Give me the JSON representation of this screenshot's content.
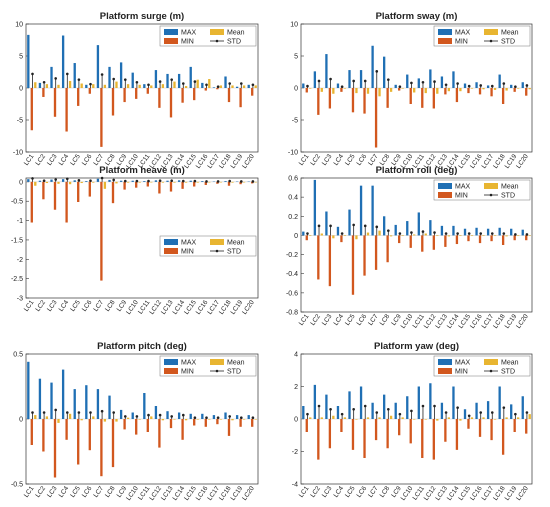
{
  "colors": {
    "max": "#1f6fb4",
    "min": "#d2571e",
    "mean": "#e8b531",
    "std": "#222222"
  },
  "legend": {
    "max": "MAX",
    "min": "MIN",
    "mean": "Mean",
    "std": "STD"
  },
  "categories": [
    "LC1",
    "LC2",
    "LC3",
    "LC4",
    "LC5",
    "LC6",
    "LC7",
    "LC8",
    "LC9",
    "LC10",
    "LC11",
    "LC12",
    "LC13",
    "LC14",
    "LC15",
    "LC16",
    "LC17",
    "LC18",
    "LC19",
    "LC20"
  ],
  "chart_data": [
    {
      "type": "bar",
      "title": "Platform surge (m)",
      "ylim": [
        -10,
        10
      ],
      "yticks": [
        -10,
        -5,
        0,
        5,
        10
      ],
      "legend_position": "top-right",
      "series": [
        {
          "name": "MAX",
          "values": [
            8.3,
            0.8,
            3.3,
            8.2,
            3.9,
            0.5,
            6.7,
            3.3,
            4.0,
            2.4,
            0.6,
            2.8,
            2.2,
            2.2,
            3.3,
            0.8,
            0.1,
            1.8,
            0.2,
            0.5
          ]
        },
        {
          "name": "MIN",
          "values": [
            -6.6,
            -1.4,
            -4.5,
            -6.8,
            -2.8,
            -0.9,
            -9.2,
            -4.3,
            -2.2,
            -1.7,
            -0.9,
            -3.1,
            -4.6,
            -2.3,
            -1.9,
            -0.4,
            -0.2,
            -2.2,
            -3.0,
            -1.2
          ]
        },
        {
          "name": "Mean",
          "values": [
            0.9,
            0.6,
            0.5,
            1.1,
            0.7,
            0.6,
            0.5,
            1.0,
            0.6,
            0.5,
            0.4,
            0.6,
            1.0,
            0.3,
            1.3,
            1.4,
            0.4,
            0.4,
            0.4,
            0.4
          ]
        },
        {
          "name": "STD",
          "values": [
            2.2,
            0.9,
            1.5,
            2.2,
            1.3,
            0.6,
            2.1,
            1.4,
            1.3,
            0.9,
            0.5,
            1.0,
            1.3,
            0.7,
            1.0,
            0.5,
            0.2,
            0.7,
            0.7,
            0.5
          ]
        }
      ]
    },
    {
      "type": "bar",
      "title": "Platform sway (m)",
      "ylim": [
        -10,
        10
      ],
      "yticks": [
        -10,
        -5,
        0,
        5,
        10
      ],
      "legend_position": "top-right",
      "series": [
        {
          "name": "MAX",
          "values": [
            0.7,
            2.6,
            5.3,
            0.7,
            2.8,
            2.8,
            6.6,
            4.9,
            0.5,
            2.1,
            1.5,
            2.9,
            1.8,
            2.6,
            0.7,
            0.9,
            0.4,
            2.1,
            0.5,
            0.9
          ]
        },
        {
          "name": "MIN",
          "values": [
            -0.7,
            -4.2,
            -3.2,
            -0.6,
            -3.8,
            -4.0,
            -9.3,
            -3.1,
            -0.4,
            -2.5,
            -3.1,
            -3.2,
            -1.0,
            -2.2,
            -0.8,
            -1.0,
            -1.3,
            -2.5,
            -0.6,
            -1.2
          ]
        },
        {
          "name": "Mean",
          "values": [
            -0.1,
            -0.6,
            -0.9,
            -0.1,
            -0.8,
            -0.9,
            -1.3,
            -0.6,
            -0.1,
            -0.7,
            -0.8,
            -0.9,
            -0.5,
            -0.5,
            -0.1,
            -0.2,
            -0.3,
            -0.4,
            -0.1,
            -0.2
          ]
        },
        {
          "name": "STD",
          "values": [
            0.3,
            1.1,
            1.4,
            0.2,
            1.1,
            1.1,
            2.6,
            1.3,
            0.2,
            0.8,
            0.9,
            1.0,
            0.5,
            0.7,
            0.3,
            0.4,
            0.3,
            0.7,
            0.2,
            0.4
          ]
        }
      ]
    },
    {
      "type": "bar",
      "title": "Platform heave (m)",
      "ylim": [
        -3,
        0.1
      ],
      "yticks": [
        -3,
        -2.5,
        -2,
        -1.5,
        -1,
        -0.5,
        0
      ],
      "legend_position": "bottom-right",
      "series": [
        {
          "name": "MAX",
          "values": [
            0.07,
            0.03,
            0.06,
            0.07,
            0.04,
            0.02,
            0.08,
            0.05,
            0.03,
            0.03,
            0.02,
            0.04,
            0.03,
            0.04,
            0.03,
            0.02,
            0.01,
            0.02,
            0.01,
            0.01
          ]
        },
        {
          "name": "MIN",
          "values": [
            -1.05,
            -0.45,
            -0.72,
            -1.05,
            -0.52,
            -0.38,
            -2.55,
            -0.55,
            -0.2,
            -0.15,
            -0.12,
            -0.3,
            -0.25,
            -0.18,
            -0.12,
            -0.08,
            -0.05,
            -0.1,
            -0.06,
            -0.04
          ]
        },
        {
          "name": "Mean",
          "values": [
            -0.1,
            -0.03,
            -0.05,
            -0.06,
            -0.03,
            -0.02,
            -0.18,
            -0.04,
            -0.02,
            -0.02,
            -0.01,
            -0.02,
            -0.02,
            -0.02,
            -0.02,
            -0.01,
            -0.01,
            -0.02,
            -0.01,
            -0.01
          ]
        },
        {
          "name": "STD",
          "values": [
            0.09,
            0.03,
            0.06,
            0.08,
            0.04,
            0.03,
            0.3,
            0.05,
            0.02,
            0.02,
            0.02,
            0.03,
            0.03,
            0.02,
            0.02,
            0.01,
            0.01,
            0.02,
            0.01,
            0.01
          ]
        }
      ]
    },
    {
      "type": "bar",
      "title": "Platform roll (deg)",
      "ylim": [
        -0.8,
        0.6
      ],
      "yticks": [
        -0.8,
        -0.6,
        -0.4,
        -0.2,
        0,
        0.2,
        0.4,
        0.6
      ],
      "legend_position": "top-right",
      "series": [
        {
          "name": "MAX",
          "values": [
            0.04,
            0.58,
            0.25,
            0.09,
            0.27,
            0.52,
            0.52,
            0.2,
            0.11,
            0.15,
            0.24,
            0.16,
            0.1,
            0.1,
            0.07,
            0.08,
            0.07,
            0.08,
            0.07,
            0.06
          ]
        },
        {
          "name": "MIN",
          "values": [
            -0.05,
            -0.46,
            -0.53,
            -0.07,
            -0.62,
            -0.42,
            -0.36,
            -0.28,
            -0.08,
            -0.13,
            -0.17,
            -0.15,
            -0.12,
            -0.09,
            -0.06,
            -0.08,
            -0.06,
            -0.1,
            -0.05,
            -0.05
          ]
        },
        {
          "name": "Mean",
          "values": [
            0.0,
            0.02,
            -0.03,
            0.0,
            -0.04,
            0.03,
            0.05,
            -0.01,
            0.0,
            0.01,
            0.02,
            0.0,
            -0.01,
            0.0,
            0.0,
            0.0,
            0.0,
            -0.01,
            0.0,
            0.0
          ]
        },
        {
          "name": "STD",
          "values": [
            0.02,
            0.1,
            0.1,
            0.02,
            0.11,
            0.1,
            0.09,
            0.05,
            0.02,
            0.03,
            0.04,
            0.03,
            0.02,
            0.02,
            0.02,
            0.02,
            0.02,
            0.02,
            0.01,
            0.01
          ]
        }
      ]
    },
    {
      "type": "bar",
      "title": "Platform pitch (deg)",
      "ylim": [
        -0.5,
        0.5
      ],
      "yticks": [
        -0.5,
        0,
        0.5
      ],
      "legend_position": "top-right",
      "series": [
        {
          "name": "MAX",
          "values": [
            0.44,
            0.31,
            0.28,
            0.38,
            0.23,
            0.26,
            0.23,
            0.18,
            0.07,
            0.05,
            0.2,
            0.1,
            0.06,
            0.05,
            0.04,
            0.04,
            0.03,
            0.05,
            0.03,
            0.03
          ]
        },
        {
          "name": "MIN",
          "values": [
            -0.2,
            -0.25,
            -0.45,
            -0.16,
            -0.35,
            -0.24,
            -0.44,
            -0.37,
            -0.08,
            -0.12,
            -0.1,
            -0.22,
            -0.07,
            -0.16,
            -0.05,
            -0.06,
            -0.04,
            -0.13,
            -0.06,
            -0.06
          ]
        },
        {
          "name": "Mean",
          "values": [
            0.03,
            0.02,
            -0.03,
            0.04,
            -0.01,
            0.02,
            -0.02,
            -0.02,
            0.01,
            0.0,
            0.02,
            -0.01,
            0.0,
            -0.01,
            0.0,
            0.0,
            0.0,
            -0.01,
            0.0,
            0.0
          ]
        },
        {
          "name": "STD",
          "values": [
            0.05,
            0.05,
            0.07,
            0.05,
            0.05,
            0.05,
            0.06,
            0.05,
            0.02,
            0.02,
            0.03,
            0.03,
            0.02,
            0.03,
            0.01,
            0.01,
            0.01,
            0.02,
            0.01,
            0.01
          ]
        }
      ]
    },
    {
      "type": "bar",
      "title": "Platform yaw (deg)",
      "ylim": [
        -4,
        4
      ],
      "yticks": [
        -4,
        -2,
        0,
        2,
        4
      ],
      "legend_position": "top-right",
      "series": [
        {
          "name": "MAX",
          "values": [
            0.8,
            2.1,
            1.5,
            0.8,
            1.7,
            2.0,
            1.0,
            1.5,
            1.0,
            1.4,
            2.0,
            2.2,
            1.0,
            2.0,
            0.6,
            1.0,
            1.1,
            2.0,
            0.9,
            1.4
          ]
        },
        {
          "name": "MIN",
          "values": [
            -0.8,
            -2.5,
            -1.8,
            -0.8,
            -1.9,
            -2.4,
            -1.3,
            -1.8,
            -1.0,
            -1.5,
            -2.4,
            -2.5,
            -1.4,
            -1.9,
            -0.6,
            -1.1,
            -1.3,
            -2.2,
            -0.8,
            -0.9
          ]
        },
        {
          "name": "Mean",
          "values": [
            0.1,
            0.1,
            0.2,
            0.1,
            0.0,
            0.1,
            0.1,
            0.2,
            0.1,
            0.0,
            0.0,
            -0.1,
            0.1,
            -0.1,
            0.1,
            0.1,
            0.0,
            0.1,
            0.1,
            0.3
          ]
        },
        {
          "name": "STD",
          "values": [
            0.3,
            0.8,
            0.6,
            0.3,
            0.6,
            0.8,
            0.4,
            0.6,
            0.3,
            0.5,
            0.8,
            0.8,
            0.4,
            0.7,
            0.2,
            0.4,
            0.4,
            0.7,
            0.3,
            0.4
          ]
        }
      ]
    }
  ]
}
